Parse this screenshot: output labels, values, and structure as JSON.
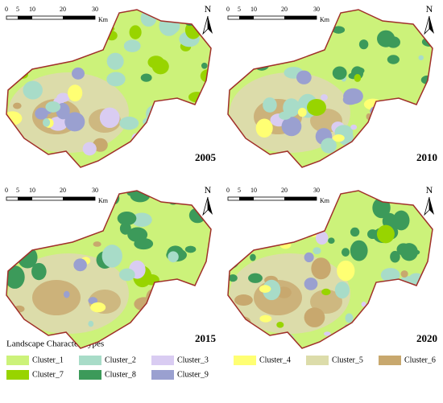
{
  "panels": [
    {
      "year": "2005",
      "north": "N",
      "scale": {
        "labels": [
          "0",
          "5",
          "10",
          "20",
          "30"
        ],
        "unit": "Km"
      }
    },
    {
      "year": "2010",
      "north": "N",
      "scale": {
        "labels": [
          "0",
          "5",
          "10",
          "20",
          "30"
        ],
        "unit": "Km"
      }
    },
    {
      "year": "2015",
      "north": "N",
      "scale": {
        "labels": [
          "0",
          "5",
          "10",
          "20",
          "30"
        ],
        "unit": "Km"
      }
    },
    {
      "year": "2020",
      "north": "N",
      "scale": {
        "labels": [
          "0",
          "5",
          "10",
          "20",
          "30"
        ],
        "unit": "Km"
      }
    }
  ],
  "legend": {
    "title": "Landscape Character Types",
    "items": [
      {
        "label": "Cluster_1",
        "color": "#ccf27a"
      },
      {
        "label": "Cluster_2",
        "color": "#a8dcc8"
      },
      {
        "label": "Cluster_3",
        "color": "#d9ccf2"
      },
      {
        "label": "Cluster_4",
        "color": "#ffff73"
      },
      {
        "label": "Cluster_5",
        "color": "#dcdcaa"
      },
      {
        "label": "Cluster_6",
        "color": "#c8a86e"
      },
      {
        "label": "Cluster_7",
        "color": "#98d400"
      },
      {
        "label": "Cluster_8",
        "color": "#3c9a5a"
      },
      {
        "label": "Cluster_9",
        "color": "#9aa0d0"
      }
    ]
  }
}
